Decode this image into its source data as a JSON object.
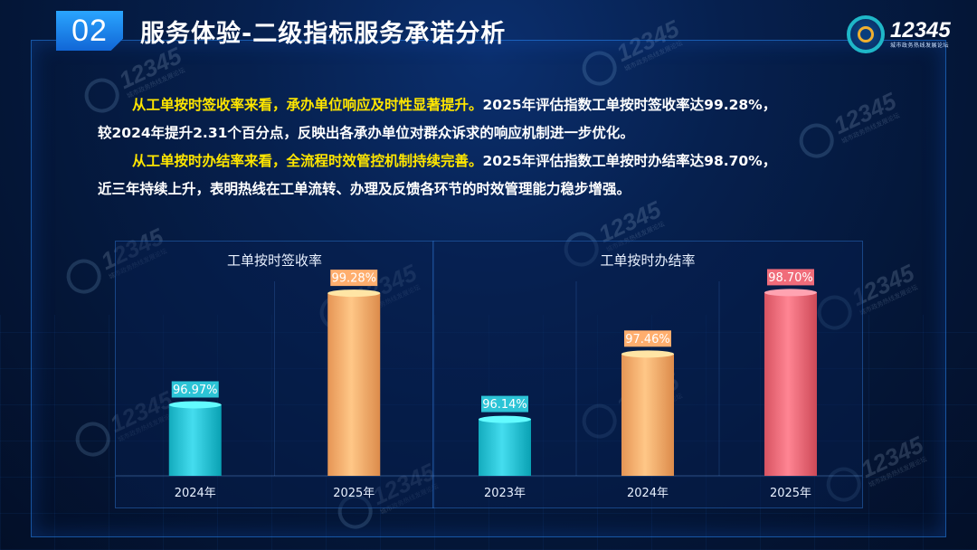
{
  "header": {
    "section_number": "02",
    "title": "服务体验-二级指标服务承诺分析",
    "logo_number": "12345",
    "logo_subtitle": "城市政务热线发展论坛"
  },
  "watermark": {
    "number": "12345",
    "subtitle": "城市政务热线发展论坛"
  },
  "paragraphs": [
    {
      "highlight": "从工单按时签收率来看，承办单位响应及时性显著提升。",
      "line1": "2025年评估指数工单按时签收率达99.28%，",
      "line2": "较2024年提升2.31个百分点，反映出各承办单位对群众诉求的响应机制进一步优化。"
    },
    {
      "highlight": "从工单按时办结率来看，全流程时效管控机制持续完善。",
      "line1": "2025年评估指数工单按时办结率达98.70%，",
      "line2": "近三年持续上升，表明热线在工单流转、办理及反馈各环节的时效管理能力稳步增强。"
    }
  ],
  "chart_data": [
    {
      "type": "bar",
      "title": "工单按时签收率",
      "categories": [
        "2024年",
        "2025年"
      ],
      "values": [
        96.97,
        99.28
      ],
      "labels": [
        "96.97%",
        "99.28%"
      ],
      "colors": [
        "#2cc4d6",
        "#ffae6e"
      ],
      "ylim": [
        95.5,
        99.6
      ],
      "grid": false
    },
    {
      "type": "bar",
      "title": "工单按时办结率",
      "categories": [
        "2023年",
        "2024年",
        "2025年"
      ],
      "values": [
        96.14,
        97.46,
        98.7
      ],
      "labels": [
        "96.14%",
        "97.46%",
        "98.70%"
      ],
      "colors": [
        "#2cc4d6",
        "#ffae6e",
        "#f06c7a"
      ],
      "ylim": [
        95.0,
        99.0
      ],
      "grid": false
    }
  ]
}
